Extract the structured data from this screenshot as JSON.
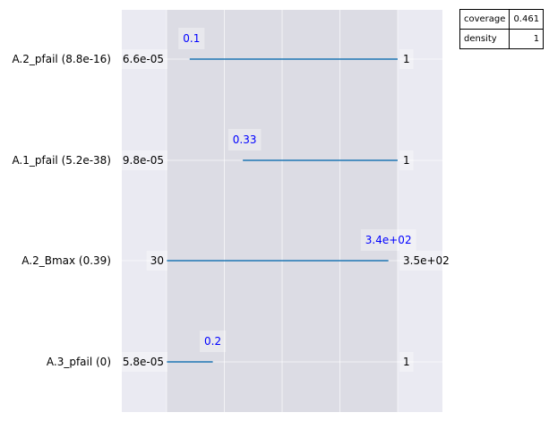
{
  "chart_data": {
    "type": "box-ranges",
    "grid": true,
    "rows": [
      {
        "label": "A.2_pfail (8.8e-16)",
        "lower_label": "6.6e-05",
        "upper_label": "1",
        "box_lower_label": "0.1",
        "box_lower": 0.1,
        "box_upper": 1.0,
        "box_upper_label": null,
        "box_upper_label_anchor": null
      },
      {
        "label": "A.1_pfail (5.2e-38)",
        "lower_label": "9.8e-05",
        "upper_label": "1",
        "box_lower_label": "0.33",
        "box_lower": 0.33,
        "box_upper": 1.0,
        "box_upper_label": null,
        "box_upper_label_anchor": null
      },
      {
        "label": "A.2_Bmax (0.39)",
        "lower_label": "30",
        "upper_label": "3.5e+02",
        "box_lower_label": null,
        "box_lower": 0.0,
        "box_upper": 0.96,
        "box_upper_label": "3.4e+02",
        "box_upper_label_anchor": 0.96
      },
      {
        "label": "A.3_pfail (0)",
        "lower_label": "5.8e-05",
        "upper_label": "1",
        "box_lower_label": null,
        "box_lower": 0.0,
        "box_upper": 0.2,
        "box_upper_label": "0.2",
        "box_upper_label_anchor": 0.2
      }
    ],
    "stats": [
      {
        "key": "coverage",
        "value": "0.461"
      },
      {
        "key": "density",
        "value": "1"
      }
    ],
    "colors": {
      "axes_bg": "#eaeaf2",
      "shade": "#dcdce4",
      "grid": "#ffffff",
      "line": "#1f77b4",
      "box_label": "#0000ff",
      "text": "#000000"
    }
  }
}
